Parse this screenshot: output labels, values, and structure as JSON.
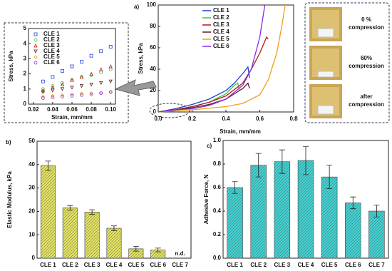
{
  "chart_data": [
    {
      "type": "line",
      "label": "a)",
      "xlabel": "Strain, mm/mm",
      "ylabel": "Stress, kPa",
      "xlim": [
        0,
        0.8
      ],
      "ylim": [
        0,
        100
      ],
      "xticks": [
        {
          "value": 0,
          "label": "0.0"
        },
        0.2,
        0.4,
        0.6,
        0.8
      ],
      "yticks": [
        0,
        20,
        40,
        60,
        80,
        100
      ],
      "legend_position": "upper center",
      "series": [
        {
          "name": "CLE 1",
          "color": "#1f3fd6",
          "x": [
            0,
            0.1,
            0.2,
            0.3,
            0.4,
            0.45,
            0.5,
            0.53,
            0.54
          ],
          "values": [
            0,
            3,
            7,
            12,
            20,
            27,
            36,
            42,
            32
          ]
        },
        {
          "name": "CLE 2",
          "color": "#3cc43c",
          "x": [
            0,
            0.1,
            0.2,
            0.3,
            0.4,
            0.45,
            0.47,
            0.48
          ],
          "values": [
            0,
            2,
            5,
            9,
            17,
            25,
            27,
            20
          ]
        },
        {
          "name": "CLE 3",
          "color": "#b01818",
          "x": [
            0,
            0.1,
            0.2,
            0.3,
            0.4,
            0.5,
            0.55,
            0.6,
            0.64,
            0.65
          ],
          "values": [
            0,
            2,
            5,
            9,
            15,
            27,
            40,
            55,
            70,
            68
          ]
        },
        {
          "name": "CLE 4",
          "color": "#5a2222",
          "x": [
            0,
            0.1,
            0.2,
            0.3,
            0.4,
            0.45,
            0.5,
            0.53,
            0.54
          ],
          "values": [
            0,
            2,
            4,
            7,
            12,
            17,
            22,
            27,
            22
          ]
        },
        {
          "name": "CLE 5",
          "color": "#f0a010",
          "x": [
            0,
            0.2,
            0.4,
            0.5,
            0.6,
            0.65,
            0.7,
            0.73,
            0.75
          ],
          "values": [
            0,
            2,
            5,
            8,
            16,
            30,
            55,
            80,
            100
          ]
        },
        {
          "name": "CLE 6",
          "color": "#8a2be2",
          "x": [
            0,
            0.1,
            0.2,
            0.3,
            0.4,
            0.5,
            0.55,
            0.6,
            0.63
          ],
          "values": [
            0,
            2,
            3,
            6,
            12,
            25,
            40,
            70,
            100
          ]
        }
      ]
    },
    {
      "type": "scatter",
      "xlabel": "Strain, mm/mm",
      "ylabel": "Stress, kPa",
      "xlim": [
        0.015,
        0.105
      ],
      "ylim": [
        0,
        5
      ],
      "xticks": [
        0.02,
        0.04,
        0.06,
        0.08,
        {
          "value": 0.1,
          "label": "0.10"
        }
      ],
      "yticks": [
        0,
        1,
        2,
        3,
        4,
        5
      ],
      "legend_position": "upper left",
      "series": [
        {
          "name": "CLE 1",
          "color": "#1f3fd6",
          "marker": "square",
          "x": [
            0.03,
            0.04,
            0.05,
            0.06,
            0.07,
            0.08,
            0.09,
            0.1
          ],
          "values": [
            1.5,
            1.8,
            2.2,
            2.5,
            2.8,
            3.2,
            3.5,
            3.8
          ]
        },
        {
          "name": "CLE 2",
          "color": "#3cc43c",
          "marker": "circle",
          "x": [
            0.03,
            0.04,
            0.05,
            0.06,
            0.07,
            0.08,
            0.09,
            0.1
          ],
          "values": [
            1.0,
            1.2,
            1.4,
            1.6,
            1.8,
            1.9,
            2.1,
            2.3
          ]
        },
        {
          "name": "CLE 3",
          "color": "#b01818",
          "marker": "triangle",
          "x": [
            0.03,
            0.04,
            0.05,
            0.06,
            0.07,
            0.08,
            0.09,
            0.1
          ],
          "values": [
            0.9,
            1.1,
            1.3,
            1.6,
            1.8,
            2.0,
            2.3,
            2.5
          ]
        },
        {
          "name": "CLE 4",
          "color": "#5a2222",
          "marker": "triangle-down",
          "x": [
            0.03,
            0.04,
            0.05,
            0.06,
            0.07,
            0.08,
            0.09,
            0.1
          ],
          "values": [
            0.8,
            0.9,
            1.0,
            1.1,
            1.2,
            1.3,
            1.4,
            1.5
          ]
        },
        {
          "name": "CLE 5",
          "color": "#f0a010",
          "marker": "diamond",
          "x": [
            0.03,
            0.04,
            0.05,
            0.06,
            0.07,
            0.08,
            0.09,
            0.1
          ],
          "values": [
            0.5,
            0.55,
            0.6,
            0.65,
            0.7,
            0.72,
            0.76,
            0.8
          ]
        },
        {
          "name": "CLE 6",
          "color": "#8a2be2",
          "marker": "circle",
          "x": [
            0.03,
            0.04,
            0.05,
            0.06,
            0.07,
            0.08,
            0.09,
            0.1
          ],
          "values": [
            0.4,
            0.45,
            0.5,
            0.55,
            0.6,
            0.65,
            0.72,
            0.8
          ]
        }
      ]
    },
    {
      "type": "bar",
      "label": "b)",
      "ylabel": "Elastic Modulus, kPa",
      "color": "#e0e060",
      "categories": [
        "CLE 1",
        "CLE 2",
        "CLE 3",
        "CLE 4",
        "CLE 5",
        "CLE 6",
        "CLE 7"
      ],
      "values": [
        39.5,
        21.5,
        19.7,
        12.8,
        4,
        3.5,
        null
      ],
      "errors": [
        2,
        1,
        1,
        1,
        1,
        0.8,
        null
      ],
      "annotation": "n.d.",
      "ylim": [
        0,
        50
      ],
      "yticks": [
        0,
        10,
        20,
        30,
        40,
        50
      ]
    },
    {
      "type": "bar",
      "label": "c)",
      "ylabel": "Adhesive Force, N",
      "color": "#40d0d0",
      "categories": [
        "CLE 1",
        "CLE 2",
        "CLE 3",
        "CLE 4",
        "CLE 5",
        "CLE 6",
        "CLE 7"
      ],
      "values": [
        0.6,
        0.79,
        0.82,
        0.83,
        0.69,
        0.47,
        0.4
      ],
      "errors": [
        0.05,
        0.1,
        0.1,
        0.12,
        0.1,
        0.05,
        0.05
      ],
      "ylim": [
        0,
        1.0
      ],
      "yticks": [
        {
          "value": 0,
          "label": "0.0"
        },
        0.2,
        0.4,
        0.6,
        0.8,
        {
          "value": 1.0,
          "label": "1.0"
        }
      ]
    }
  ],
  "photos": [
    {
      "label": "0 %",
      "caption": "compression"
    },
    {
      "label": "60%",
      "caption": "compression"
    },
    {
      "label": "after",
      "caption": "compression"
    }
  ]
}
